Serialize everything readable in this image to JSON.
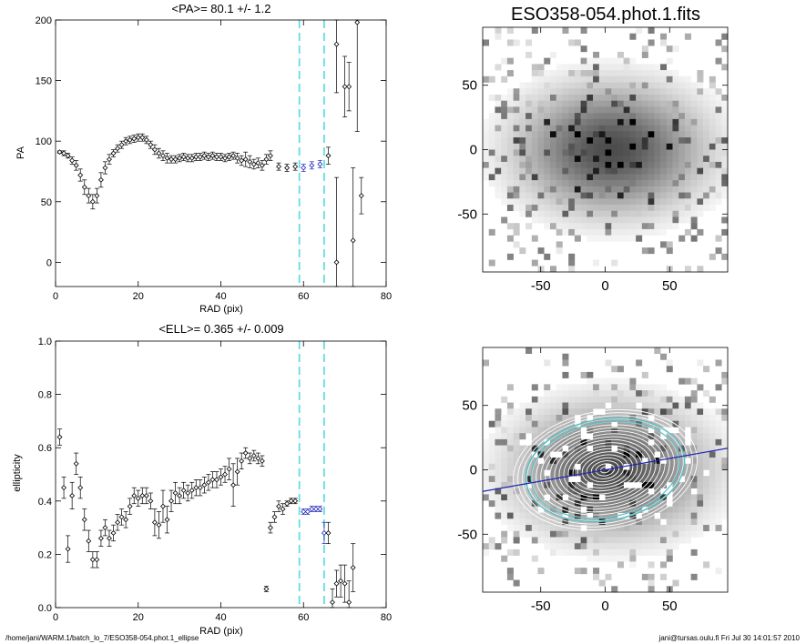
{
  "colors": {
    "marker": "#000000",
    "errorbar": "#000000",
    "fit": "#1e24b4",
    "guide": "#66dde0",
    "ellipse_outer": "#5fbfc4"
  },
  "footer": {
    "left": "/home/jani/WARM.1/batch_lo_7/ESO358-054.phot.1_ellipse",
    "right": "jani@tursas.oulu.fi  Fri Jul 30 14:01:57 2010"
  },
  "chart_data": [
    {
      "type": "scatter",
      "title": "<PA>=  80.1 +/-   1.2",
      "xlabel": "RAD (pix)",
      "ylabel": "PA",
      "xlim": [
        0,
        80
      ],
      "ylim": [
        -20,
        200
      ],
      "xticks": [
        "0",
        "20",
        "40",
        "60",
        "80"
      ],
      "yticks": [
        "0",
        "50",
        "100",
        "150",
        "200"
      ],
      "vlines": [
        59,
        65
      ],
      "fit_range": [
        59,
        65
      ],
      "fit_value": 80.1,
      "points": [
        [
          1,
          91
        ],
        [
          2,
          90
        ],
        [
          3,
          88
        ],
        [
          4,
          84
        ],
        [
          5,
          80
        ],
        [
          6,
          72
        ],
        [
          7,
          62
        ],
        [
          8,
          55
        ],
        [
          9,
          50
        ],
        [
          10,
          55
        ],
        [
          11,
          68
        ],
        [
          12,
          78
        ],
        [
          13,
          85
        ],
        [
          14,
          90
        ],
        [
          15,
          94
        ],
        [
          16,
          97
        ],
        [
          17,
          100
        ],
        [
          18,
          101
        ],
        [
          19,
          102
        ],
        [
          20,
          103
        ],
        [
          21,
          103
        ],
        [
          22,
          101
        ],
        [
          23,
          97
        ],
        [
          24,
          93
        ],
        [
          25,
          90
        ],
        [
          26,
          88
        ],
        [
          27,
          86
        ],
        [
          28,
          85
        ],
        [
          29,
          85
        ],
        [
          30,
          86
        ],
        [
          31,
          87
        ],
        [
          32,
          86
        ],
        [
          33,
          86
        ],
        [
          34,
          87
        ],
        [
          35,
          87
        ],
        [
          36,
          88
        ],
        [
          37,
          87
        ],
        [
          38,
          88
        ],
        [
          39,
          87
        ],
        [
          40,
          87
        ],
        [
          41,
          86
        ],
        [
          42,
          87
        ],
        [
          43,
          88
        ],
        [
          44,
          86
        ],
        [
          45,
          84
        ],
        [
          46,
          85
        ],
        [
          47,
          83
        ],
        [
          48,
          81
        ],
        [
          49,
          82
        ],
        [
          50,
          80
        ],
        [
          51,
          85
        ],
        [
          52,
          88
        ],
        [
          54,
          79
        ],
        [
          56,
          78
        ],
        [
          58,
          79
        ],
        [
          60,
          78
        ],
        [
          62,
          80
        ],
        [
          64,
          81
        ],
        [
          66,
          88
        ],
        [
          68,
          0
        ],
        [
          68,
          180
        ],
        [
          70,
          145
        ],
        [
          71,
          145
        ],
        [
          72,
          18
        ],
        [
          73,
          198
        ],
        [
          74,
          55
        ]
      ],
      "errors": [
        1,
        2,
        2,
        3,
        4,
        5,
        6,
        6,
        6,
        6,
        6,
        5,
        4,
        3,
        3,
        3,
        3,
        3,
        3,
        3,
        3,
        3,
        3,
        4,
        4,
        4,
        4,
        3,
        3,
        3,
        3,
        3,
        3,
        3,
        3,
        3,
        3,
        3,
        3,
        3,
        3,
        3,
        3,
        4,
        4,
        6,
        5,
        4,
        4,
        4,
        4,
        4,
        3,
        3,
        3,
        3,
        3,
        3,
        7,
        70,
        40,
        25,
        20,
        60,
        90,
        15
      ]
    },
    {
      "type": "scatter",
      "title": "<ELL>= 0.365 +/-  0.009",
      "xlabel": "RAD (pix)",
      "ylabel": "ellipticity",
      "xlim": [
        0,
        80
      ],
      "ylim": [
        0,
        1
      ],
      "xticks": [
        "0",
        "20",
        "40",
        "60",
        "80"
      ],
      "yticks": [
        "0.0",
        "0.2",
        "0.4",
        "0.6",
        "0.8",
        "1.0"
      ],
      "vlines": [
        59,
        65
      ],
      "fit_range": [
        59,
        65
      ],
      "fit_value": 0.365,
      "points": [
        [
          1,
          0.64
        ],
        [
          2,
          0.45
        ],
        [
          3,
          0.22
        ],
        [
          4,
          0.42
        ],
        [
          5,
          0.54
        ],
        [
          6,
          0.45
        ],
        [
          7,
          0.33
        ],
        [
          8,
          0.25
        ],
        [
          9,
          0.18
        ],
        [
          10,
          0.18
        ],
        [
          11,
          0.26
        ],
        [
          12,
          0.3
        ],
        [
          13,
          0.26
        ],
        [
          14,
          0.28
        ],
        [
          15,
          0.32
        ],
        [
          16,
          0.34
        ],
        [
          17,
          0.33
        ],
        [
          18,
          0.38
        ],
        [
          19,
          0.42
        ],
        [
          20,
          0.41
        ],
        [
          21,
          0.42
        ],
        [
          22,
          0.42
        ],
        [
          23,
          0.4
        ],
        [
          24,
          0.32
        ],
        [
          25,
          0.31
        ],
        [
          26,
          0.38
        ],
        [
          27,
          0.33
        ],
        [
          28,
          0.4
        ],
        [
          29,
          0.43
        ],
        [
          30,
          0.42
        ],
        [
          31,
          0.44
        ],
        [
          32,
          0.43
        ],
        [
          33,
          0.44
        ],
        [
          34,
          0.45
        ],
        [
          35,
          0.45
        ],
        [
          36,
          0.46
        ],
        [
          37,
          0.47
        ],
        [
          38,
          0.48
        ],
        [
          39,
          0.48
        ],
        [
          40,
          0.49
        ],
        [
          41,
          0.5
        ],
        [
          42,
          0.52
        ],
        [
          43,
          0.46
        ],
        [
          44,
          0.51
        ],
        [
          45,
          0.55
        ],
        [
          46,
          0.58
        ],
        [
          47,
          0.56
        ],
        [
          48,
          0.57
        ],
        [
          49,
          0.56
        ],
        [
          50,
          0.55
        ],
        [
          51,
          0.07
        ],
        [
          52,
          0.3
        ],
        [
          53,
          0.34
        ],
        [
          54,
          0.38
        ],
        [
          55,
          0.37
        ],
        [
          56,
          0.39
        ],
        [
          57,
          0.4
        ],
        [
          58,
          0.4
        ],
        [
          60,
          0.36
        ],
        [
          61,
          0.36
        ],
        [
          62,
          0.37
        ],
        [
          63,
          0.37
        ],
        [
          64,
          0.37
        ],
        [
          65,
          0.28
        ],
        [
          66,
          0.28
        ],
        [
          67,
          0.02
        ],
        [
          68,
          0.09
        ],
        [
          69,
          0.1
        ],
        [
          70,
          0.09
        ],
        [
          71,
          0.02
        ],
        [
          72,
          0.15
        ]
      ],
      "errors": [
        0.03,
        0.04,
        0.05,
        0.05,
        0.04,
        0.04,
        0.04,
        0.04,
        0.03,
        0.03,
        0.03,
        0.03,
        0.03,
        0.03,
        0.03,
        0.03,
        0.03,
        0.03,
        0.03,
        0.03,
        0.03,
        0.03,
        0.03,
        0.05,
        0.05,
        0.06,
        0.05,
        0.04,
        0.04,
        0.03,
        0.03,
        0.03,
        0.03,
        0.03,
        0.03,
        0.03,
        0.03,
        0.03,
        0.03,
        0.03,
        0.03,
        0.04,
        0.08,
        0.05,
        0.03,
        0.02,
        0.02,
        0.02,
        0.02,
        0.02,
        0.01,
        0.02,
        0.02,
        0.02,
        0.02,
        0.01,
        0.01,
        0.01,
        0.01,
        0.01,
        0.01,
        0.01,
        0.01,
        0.04,
        0.04,
        0.05,
        0.05,
        0.06,
        0.07,
        0.08,
        0.09
      ]
    },
    {
      "type": "heatmap",
      "title": "ESO358-054.phot.1.fits",
      "xlim": [
        -95,
        95
      ],
      "ylim": [
        -95,
        95
      ],
      "xticks": [
        "-50",
        "0",
        "50"
      ],
      "yticks": [
        "-50",
        "0",
        "50"
      ],
      "colormap": "grayscale, inverted"
    },
    {
      "type": "heatmap",
      "title": "",
      "xlim": [
        -95,
        95
      ],
      "ylim": [
        -95,
        95
      ],
      "xticks": [
        "-50",
        "0",
        "50"
      ],
      "yticks": [
        "-50",
        "0",
        "50"
      ],
      "overlay": "fitted ellipse isophotes with major-axis line",
      "colormap": "grayscale, inverted"
    }
  ]
}
